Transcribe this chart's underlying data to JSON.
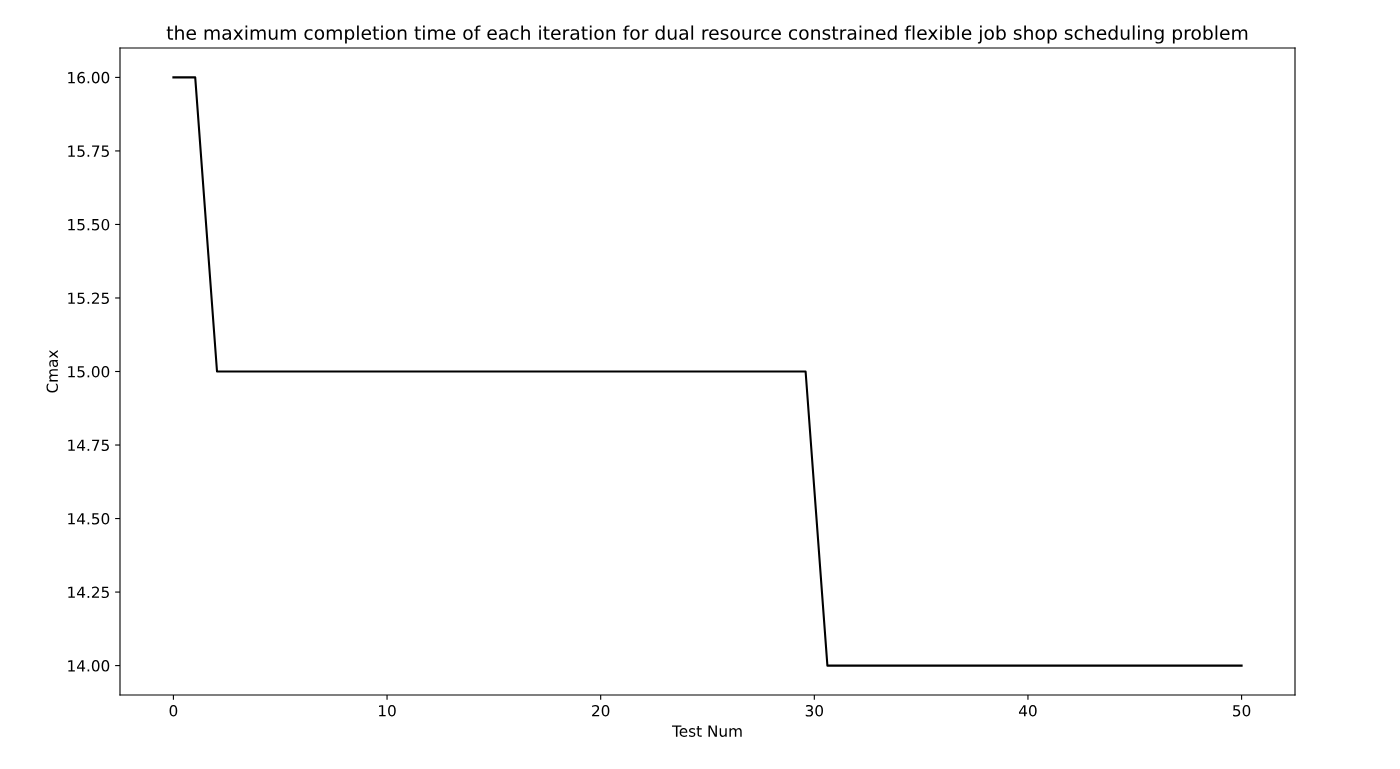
{
  "chart_data": {
    "type": "line",
    "title": "the maximum completion time of each iteration for dual resource constrained flexible job shop scheduling problem",
    "xlabel": "Test Num",
    "ylabel": "Cmax",
    "x": [
      0,
      1.0204,
      2.0408,
      3.0612,
      4.0816,
      5.102,
      6.1224,
      7.1429,
      8.1633,
      9.1837,
      10.2041,
      11.2245,
      12.2449,
      13.2653,
      14.2857,
      15.3061,
      16.3265,
      17.3469,
      18.3673,
      19.3878,
      20.4082,
      21.4286,
      22.449,
      23.4694,
      24.4898,
      25.5102,
      26.5306,
      27.551,
      28.5714,
      29.5918,
      30.6122,
      31.6327,
      32.6531,
      33.6735,
      34.6939,
      35.7143,
      36.7347,
      37.7551,
      38.7755,
      39.7959,
      40.8163,
      41.8367,
      42.8571,
      43.8776,
      44.898,
      45.9184,
      46.9388,
      47.9592,
      48.9796,
      50
    ],
    "series": [
      {
        "color": "#000000",
        "values": [
          16,
          16,
          15,
          15,
          15,
          15,
          15,
          15,
          15,
          15,
          15,
          15,
          15,
          15,
          15,
          15,
          15,
          15,
          15,
          15,
          15,
          15,
          15,
          15,
          15,
          15,
          15,
          15,
          15,
          15,
          14,
          14,
          14,
          14,
          14,
          14,
          14,
          14,
          14,
          14,
          14,
          14,
          14,
          14,
          14,
          14,
          14,
          14,
          14,
          14
        ]
      }
    ],
    "xlim": [
      -2.5,
      52.5
    ],
    "xticks": [
      0,
      10,
      20,
      30,
      40,
      50
    ],
    "ylim": [
      13.9,
      16.1
    ],
    "yticks": [
      {
        "value": 14,
        "label": "14.00"
      },
      {
        "value": 14.25,
        "label": "14.25"
      },
      {
        "value": 14.5,
        "label": "14.50"
      },
      {
        "value": 14.75,
        "label": "14.75"
      },
      {
        "value": 15,
        "label": "15.00"
      },
      {
        "value": 15.25,
        "label": "15.25"
      },
      {
        "value": 15.5,
        "label": "15.50"
      },
      {
        "value": 15.75,
        "label": "15.75"
      },
      {
        "value": 16,
        "label": "16.00"
      }
    ],
    "grid": false,
    "legend": false,
    "marker": "none",
    "line_style": "solid"
  }
}
